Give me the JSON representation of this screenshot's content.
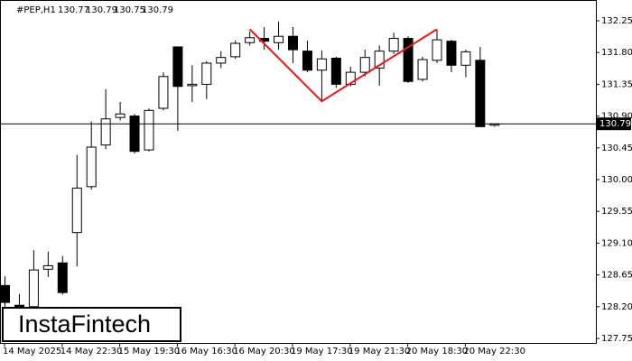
{
  "chart_data": {
    "type": "candlestick",
    "symbol": "#PEP,H1",
    "categories": [
      "14 May 2025",
      null,
      null,
      null,
      "14 May 22:30",
      null,
      null,
      null,
      "15 May 19:30",
      null,
      null,
      null,
      "16 May 16:30",
      null,
      null,
      null,
      "16 May 20:30",
      null,
      null,
      null,
      "19 May 17:30",
      null,
      null,
      null,
      "19 May 21:30",
      null,
      null,
      null,
      "20 May 18:30",
      null,
      null,
      null,
      "20 May 22:30",
      null,
      null
    ],
    "open": [
      128.5,
      128.22,
      128.2,
      128.73,
      128.82,
      129.25,
      129.9,
      130.49,
      130.88,
      130.9,
      130.42,
      131.01,
      131.88,
      131.33,
      131.35,
      131.65,
      131.74,
      131.94,
      132.0,
      131.94,
      132.03,
      131.82,
      131.55,
      131.72,
      131.35,
      131.52,
      131.58,
      131.82,
      132.0,
      131.42,
      131.69,
      131.96,
      131.62,
      131.69,
      130.77
    ],
    "high": [
      128.63,
      128.38,
      129.0,
      128.98,
      128.92,
      130.35,
      130.82,
      131.28,
      131.1,
      130.93,
      131.01,
      131.52,
      131.88,
      131.62,
      131.68,
      131.82,
      131.97,
      132.1,
      132.16,
      132.24,
      132.16,
      131.97,
      131.83,
      131.74,
      131.6,
      131.84,
      131.9,
      132.08,
      132.03,
      131.74,
      132.12,
      131.98,
      131.84,
      131.88,
      130.79
    ],
    "low": [
      128.2,
      128.12,
      128.12,
      128.62,
      128.37,
      128.77,
      129.86,
      130.43,
      130.84,
      130.37,
      130.4,
      130.98,
      130.69,
      131.1,
      131.14,
      131.58,
      131.71,
      131.9,
      131.84,
      131.84,
      131.65,
      131.52,
      131.11,
      131.3,
      131.32,
      131.46,
      131.33,
      131.78,
      131.37,
      131.39,
      131.65,
      131.52,
      131.45,
      130.75,
      130.75
    ],
    "close": [
      128.26,
      128.2,
      128.72,
      128.78,
      128.4,
      129.88,
      130.46,
      130.86,
      130.93,
      130.4,
      130.98,
      131.46,
      131.32,
      131.35,
      131.65,
      131.73,
      131.93,
      132.01,
      131.96,
      132.03,
      131.84,
      131.55,
      131.71,
      131.35,
      131.52,
      131.73,
      131.82,
      132.0,
      131.39,
      131.7,
      131.98,
      131.62,
      131.81,
      130.75,
      130.79
    ],
    "ylim": [
      127.686,
      132.544
    ],
    "yticks": [
      132.25,
      {
        "value": 131.8,
        "label": "131.80"
      },
      131.35,
      {
        "value": 130.9,
        "label": "130.90"
      },
      130.45,
      {
        "value": 130,
        "label": "130.00"
      },
      129.55,
      {
        "value": 129.1,
        "label": "129.10"
      },
      128.65,
      {
        "value": 128.2,
        "label": "128.20"
      },
      127.75
    ],
    "current_price": 130.79,
    "pattern": {
      "color": "#e8191a",
      "x": [
        17,
        22,
        30
      ],
      "y": [
        132.13,
        131.11,
        132.13
      ]
    },
    "watermark": "InstaFintech"
  }
}
